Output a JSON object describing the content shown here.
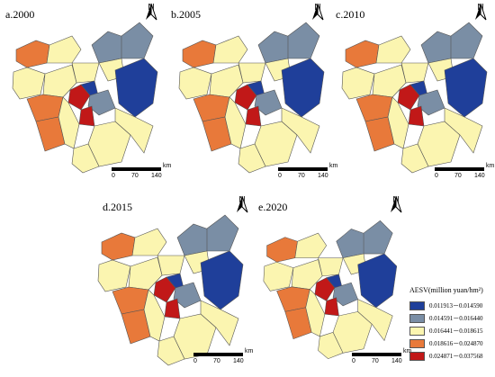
{
  "panels": [
    {
      "label": "a.2000"
    },
    {
      "label": "b.2005"
    },
    {
      "label": "c.2010"
    },
    {
      "label": "d.2015"
    },
    {
      "label": "e.2020"
    }
  ],
  "north_label": "N",
  "scale": {
    "unit": "km",
    "ticks": [
      "0",
      "70",
      "140"
    ]
  },
  "legend": {
    "title": "AESV(million yuan/hm²)",
    "classes": [
      {
        "range": "0.011913－0.014590",
        "color": "#1f3f9a"
      },
      {
        "range": "0.014591－0.016440",
        "color": "#7a8ea5"
      },
      {
        "range": "0.016441－0.018615",
        "color": "#fbf5b0"
      },
      {
        "range": "0.018616－0.024870",
        "color": "#e8793a"
      },
      {
        "range": "0.024871－0.037568",
        "color": "#c11818"
      }
    ]
  }
}
